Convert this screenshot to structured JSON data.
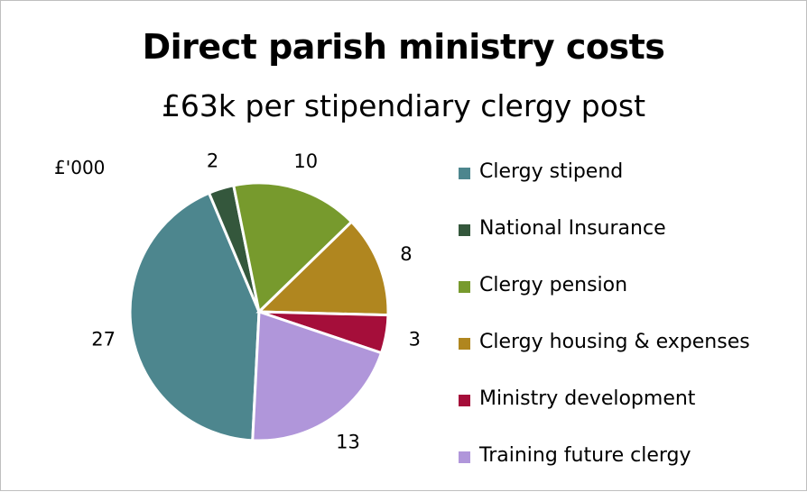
{
  "chart_data": {
    "type": "pie",
    "title": "Direct parish ministry costs",
    "subtitle": "£63k per stipendiary clergy post",
    "unit_label": "£'000",
    "legend_position": "right",
    "slices": [
      {
        "label": "Clergy stipend",
        "value": 27,
        "color": "#4d868e"
      },
      {
        "label": "National Insurance",
        "value": 2,
        "color": "#34573c"
      },
      {
        "label": "Clergy pension",
        "value": 10,
        "color": "#779a2d"
      },
      {
        "label": "Clergy housing & expenses",
        "value": 8,
        "color": "#b0861f"
      },
      {
        "label": "Ministry development",
        "value": 3,
        "color": "#a50e3a"
      },
      {
        "label": "Training future clergy",
        "value": 13,
        "color": "#b096da"
      }
    ]
  }
}
